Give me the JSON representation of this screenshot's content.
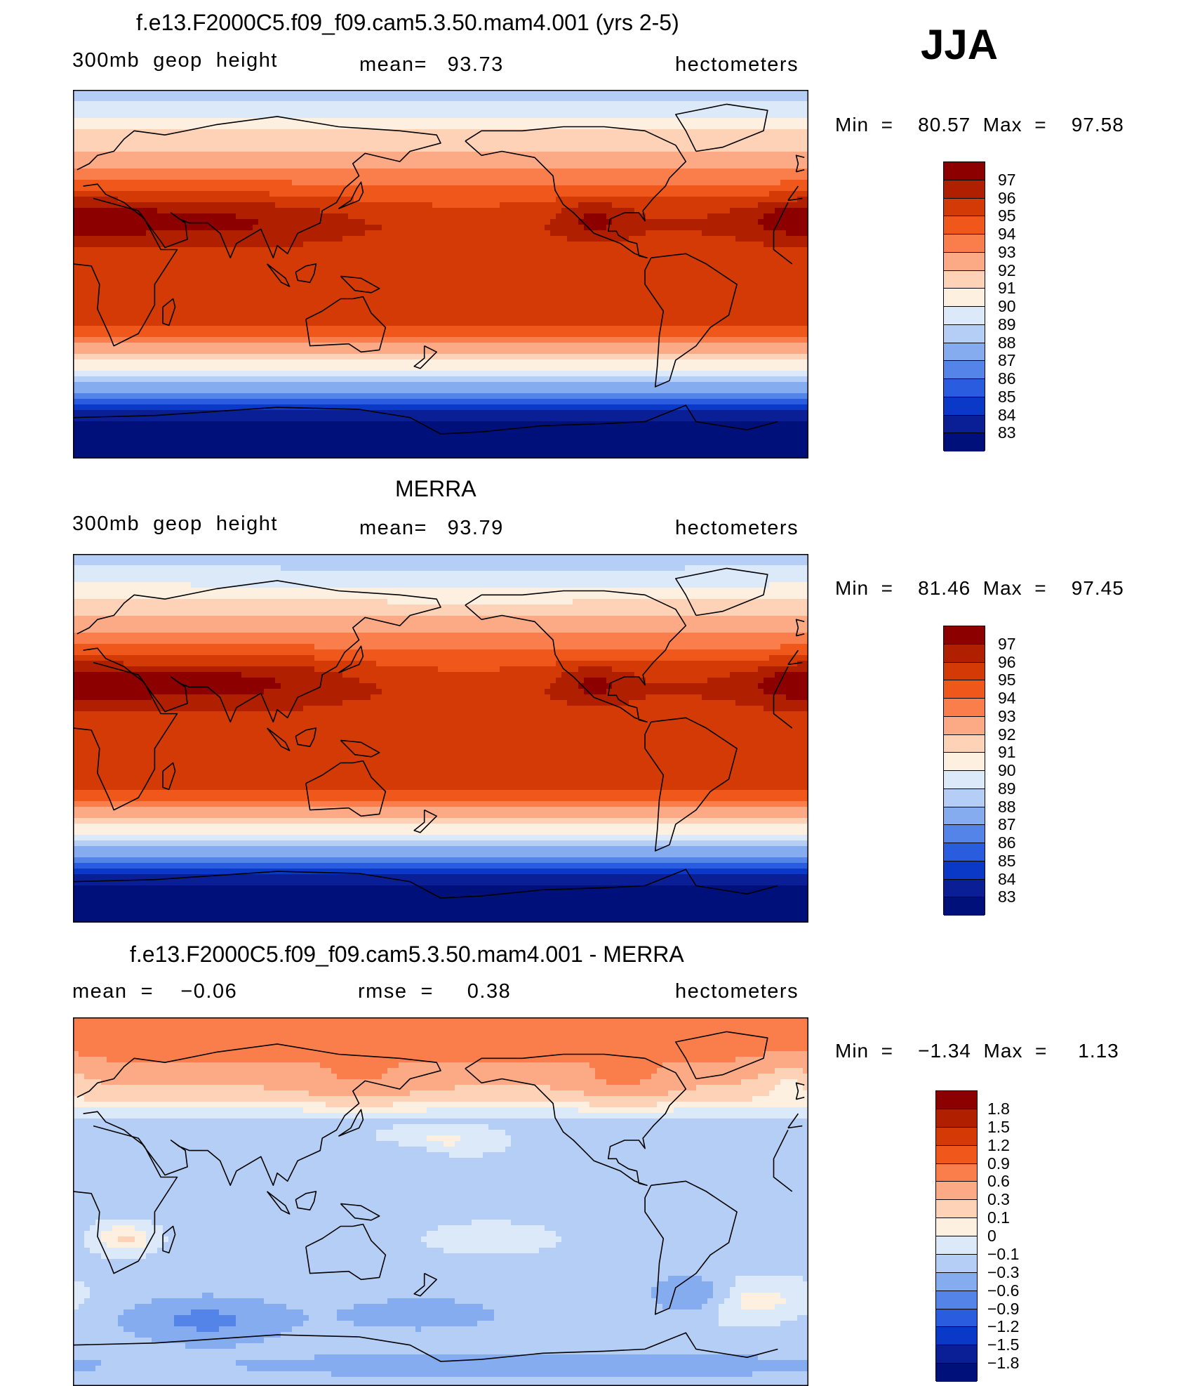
{
  "season": "JJA",
  "panels": [
    {
      "title": "f.e13.F2000C5.f09_f09.cam5.3.50.mam4.001 (yrs 2-5)",
      "left": "300mb  geop  height",
      "center": "mean=   93.73",
      "right": "hectometers",
      "minmax": "Min  =    80.57  Max  =    97.58",
      "field": "model",
      "colorbar": {
        "labels": [
          "97",
          "96",
          "95",
          "94",
          "93",
          "92",
          "91",
          "90",
          "89",
          "88",
          "87",
          "86",
          "85",
          "84",
          "83"
        ],
        "colors": [
          "#8c0000",
          "#b02000",
          "#d43a05",
          "#f0571b",
          "#fa7e4c",
          "#fcaa85",
          "#fdd2b6",
          "#fef0e0",
          "#dce9f8",
          "#b4cef5",
          "#86acf0",
          "#5584e8",
          "#2a5ce0",
          "#0a39c7",
          "#0a1f96",
          "#00107a"
        ]
      },
      "colors": {
        "bands": [
          "#00107a",
          "#0a1f96",
          "#0a39c7",
          "#2a5ce0",
          "#5584e8",
          "#86acf0",
          "#b4cef5",
          "#dce9f8",
          "#fef0e0",
          "#fdd2b6",
          "#fcaa85",
          "#fa7e4c",
          "#f0571b",
          "#d43a05",
          "#b02000",
          "#8c0000"
        ]
      }
    },
    {
      "title": "MERRA",
      "left": "300mb  geop  height",
      "center": "mean=   93.79",
      "right": "hectometers",
      "minmax": "Min  =    81.46  Max  =    97.45",
      "field": "obs",
      "colorbar": {
        "labels": [
          "97",
          "96",
          "95",
          "94",
          "93",
          "92",
          "91",
          "90",
          "89",
          "88",
          "87",
          "86",
          "85",
          "84",
          "83"
        ],
        "colors": [
          "#8c0000",
          "#b02000",
          "#d43a05",
          "#f0571b",
          "#fa7e4c",
          "#fcaa85",
          "#fdd2b6",
          "#fef0e0",
          "#dce9f8",
          "#b4cef5",
          "#86acf0",
          "#5584e8",
          "#2a5ce0",
          "#0a39c7",
          "#0a1f96",
          "#00107a"
        ]
      }
    },
    {
      "title": "f.e13.F2000C5.f09_f09.cam5.3.50.mam4.001 - MERRA",
      "left": "mean  =    −0.06",
      "center": "rmse  =     0.38",
      "right": "hectometers",
      "minmax": "Min  =    −1.34  Max  =     1.13",
      "field": "diff",
      "colorbar": {
        "labels": [
          "1.8",
          "1.5",
          "1.2",
          "0.9",
          "0.6",
          "0.3",
          "0.1",
          "0",
          "−0.1",
          "−0.3",
          "−0.6",
          "−0.9",
          "−1.2",
          "−1.5",
          "−1.8"
        ],
        "colors": [
          "#8c0000",
          "#b02000",
          "#d43a05",
          "#f0571b",
          "#fa7e4c",
          "#fcaa85",
          "#fdd2b6",
          "#fef0e0",
          "#dce9f8",
          "#b4cef5",
          "#86acf0",
          "#5584e8",
          "#2a5ce0",
          "#0a39c7",
          "#0a1f96",
          "#00107a"
        ]
      }
    }
  ]
}
